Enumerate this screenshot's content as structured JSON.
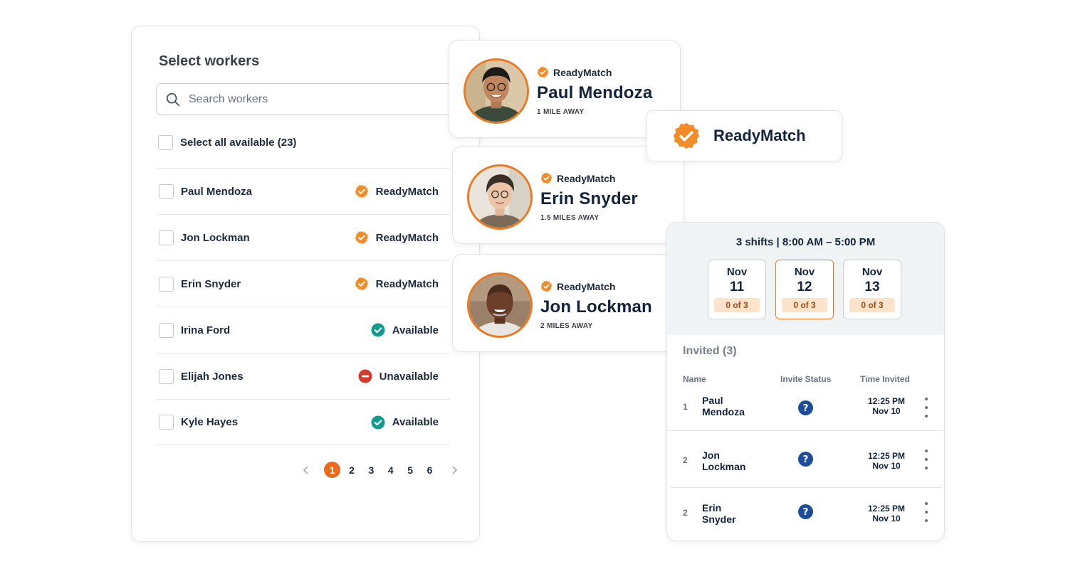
{
  "colors": {
    "accent": "#ea6a1e",
    "readymatch_orange": "#f28c28",
    "available_teal": "#129a8f",
    "unavailable_red": "#d33a2c",
    "question_blue": "#1c4c9c"
  },
  "select_panel": {
    "title": "Select workers",
    "search_placeholder": "Search workers",
    "select_all_label": "Select all available (23)",
    "workers": [
      {
        "name": "Paul Mendoza",
        "status": "ReadyMatch",
        "status_icon": "readymatch-badge-icon"
      },
      {
        "name": "Jon Lockman",
        "status": "ReadyMatch",
        "status_icon": "readymatch-badge-icon"
      },
      {
        "name": "Erin Snyder",
        "status": "ReadyMatch",
        "status_icon": "readymatch-badge-icon"
      },
      {
        "name": "Irina Ford",
        "status": "Available",
        "status_icon": "check-circle-icon"
      },
      {
        "name": "Elijah Jones",
        "status": "Unavailable",
        "status_icon": "minus-circle-icon"
      },
      {
        "name": "Kyle Hayes",
        "status": "Available",
        "status_icon": "check-circle-icon"
      }
    ],
    "pagination": {
      "pages": [
        "1",
        "2",
        "3",
        "4",
        "5",
        "6"
      ],
      "current": "1"
    }
  },
  "profiles": [
    {
      "id": "paul",
      "badge": "ReadyMatch",
      "name": "Paul Mendoza",
      "distance": "1 MILE AWAY"
    },
    {
      "id": "erin",
      "badge": "ReadyMatch",
      "name": "Erin Snyder",
      "distance": "1.5 MILES AWAY"
    },
    {
      "id": "jon",
      "badge": "ReadyMatch",
      "name": "Jon Lockman",
      "distance": "2 MILES AWAY"
    }
  ],
  "readymatch_badge": {
    "label": "ReadyMatch"
  },
  "shift_panel": {
    "summary": "3 shifts | 8:00 AM – 5:00 PM",
    "days": [
      {
        "month": "Nov",
        "day": "11",
        "count": "0 of 3",
        "selected": false
      },
      {
        "month": "Nov",
        "day": "12",
        "count": "0 of 3",
        "selected": true
      },
      {
        "month": "Nov",
        "day": "13",
        "count": "0 of 3",
        "selected": false
      }
    ],
    "invited_title": "Invited (3)",
    "columns": {
      "name": "Name",
      "status": "Invite Status",
      "time": "Time Invited"
    },
    "invites": [
      {
        "num": "1",
        "first": "Paul",
        "last": "Mendoza",
        "time": "12:25 PM",
        "date": "Nov 10"
      },
      {
        "num": "2",
        "first": "Jon",
        "last": "Lockman",
        "time": "12:25 PM",
        "date": "Nov 10"
      },
      {
        "num": "2",
        "first": "Erin",
        "last": "Snyder",
        "time": "12:25 PM",
        "date": "Nov 10"
      }
    ]
  }
}
